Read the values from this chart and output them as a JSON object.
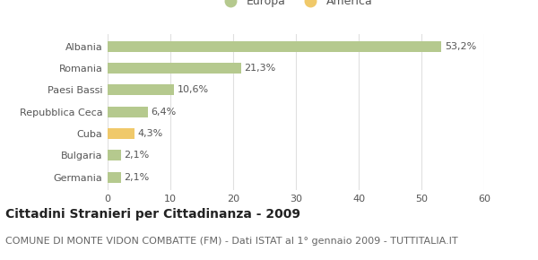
{
  "categories": [
    "Germania",
    "Bulgaria",
    "Cuba",
    "Repubblica Ceca",
    "Paesi Bassi",
    "Romania",
    "Albania"
  ],
  "values": [
    2.1,
    2.1,
    4.3,
    6.4,
    10.6,
    21.3,
    53.2
  ],
  "labels": [
    "2,1%",
    "2,1%",
    "4,3%",
    "6,4%",
    "10,6%",
    "21,3%",
    "53,2%"
  ],
  "colors": [
    "#b5c98e",
    "#b5c98e",
    "#f0c96a",
    "#b5c98e",
    "#b5c98e",
    "#b5c98e",
    "#b5c98e"
  ],
  "europa_color": "#b5c98e",
  "america_color": "#f0c96a",
  "xlim": [
    0,
    60
  ],
  "xticks": [
    0,
    10,
    20,
    30,
    40,
    50,
    60
  ],
  "title": "Cittadini Stranieri per Cittadinanza - 2009",
  "subtitle": "COMUNE DI MONTE VIDON COMBATTE (FM) - Dati ISTAT al 1° gennaio 2009 - TUTTITALIA.IT",
  "legend_europa": "Europa",
  "legend_america": "America",
  "bg_color": "#ffffff",
  "bar_height": 0.5,
  "title_fontsize": 10,
  "subtitle_fontsize": 8,
  "label_fontsize": 8,
  "tick_fontsize": 8,
  "legend_fontsize": 9
}
